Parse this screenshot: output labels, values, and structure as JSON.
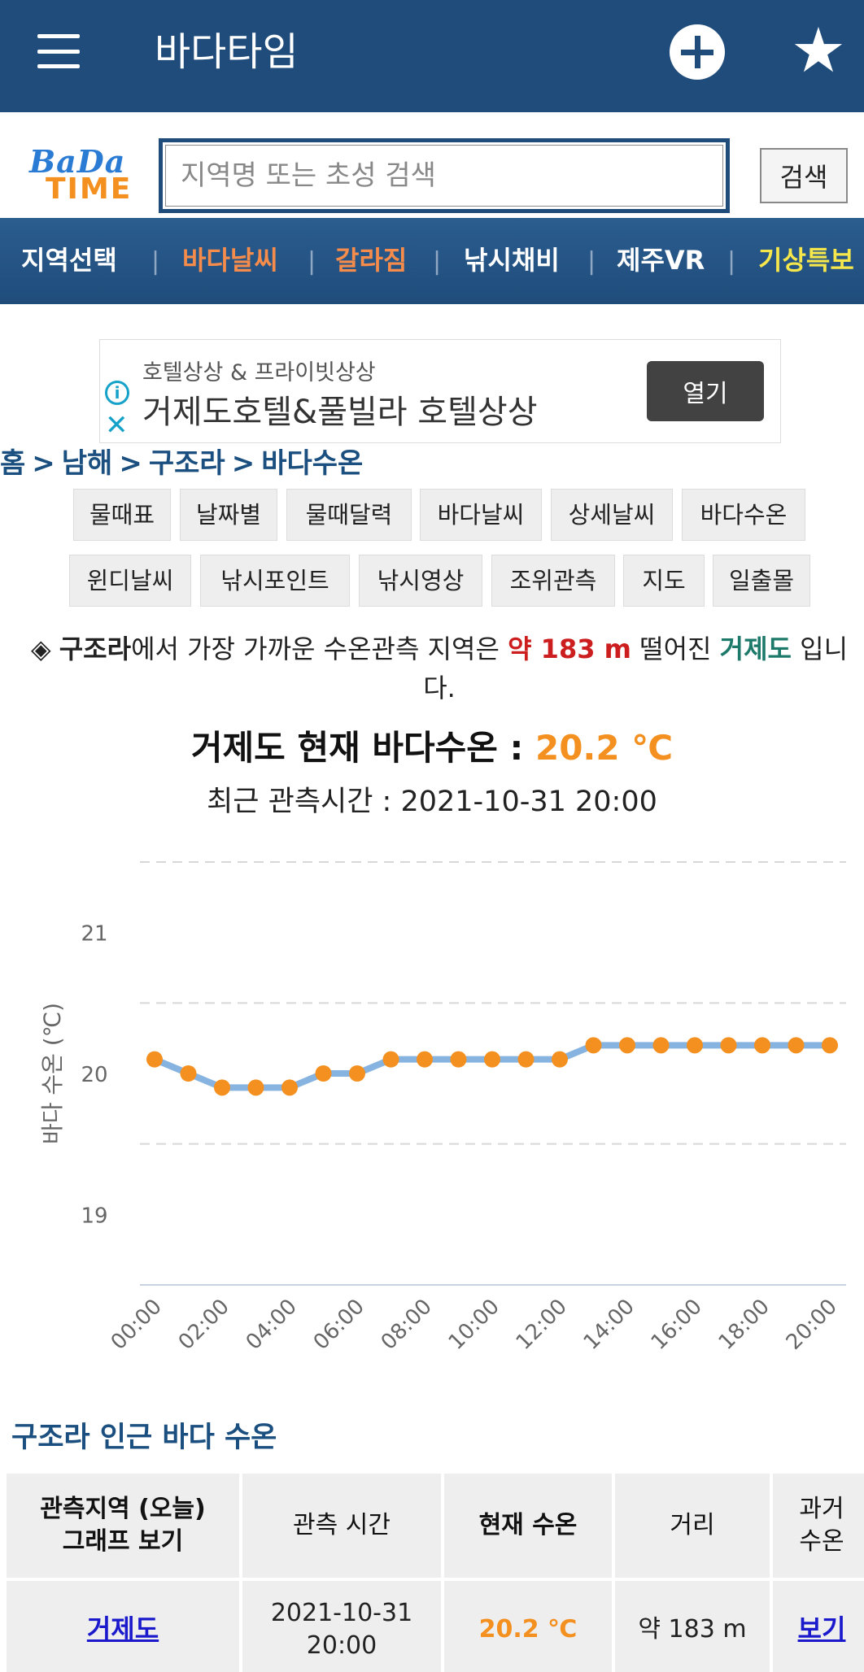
{
  "app": {
    "title": "바다타임"
  },
  "search": {
    "logo_line1": "BaDa",
    "logo_line2": "TIME",
    "placeholder": "지역명 또는 초성 검색",
    "button": "검색"
  },
  "nav": {
    "items": [
      {
        "label": "지역선택",
        "color": "#ffffff"
      },
      {
        "label": "바다날씨",
        "color": "#f58c4b"
      },
      {
        "label": "갈라짐",
        "color": "#f58c4b"
      },
      {
        "label": "낚시채비",
        "color": "#ffffff"
      },
      {
        "label": "제주VR",
        "color": "#ffffff"
      },
      {
        "label": "기상특보",
        "color": "#f5e64b"
      }
    ]
  },
  "ad": {
    "small": "호텔상상 & 프라이빗상상",
    "main": "거제도호텔&풀빌라 호텔상상",
    "button": "열기"
  },
  "breadcrumb": [
    "홈",
    "남해",
    "구조라",
    "바다수온"
  ],
  "tabs_row1": [
    "물때표",
    "날짜별",
    "물때달력",
    "바다날씨",
    "상세날씨",
    "바다수온"
  ],
  "tabs_row2": [
    "윈디날씨",
    "낚시포인트",
    "낚시영상",
    "조위관측",
    "지도",
    "일출몰"
  ],
  "info": {
    "bullet": "◈",
    "place": "구조라",
    "text1": "에서 가장 가까운 수온관측 지역은",
    "distance": "약 183 m",
    "text2": "떨어진",
    "station": "거제도",
    "text3": "입니다."
  },
  "current": {
    "title": "거제도 현재 바다수온 :",
    "temp": "20.2 ℃",
    "time_label": "최근 관측시간 : 2021-10-31 20:00"
  },
  "chart_data": {
    "type": "line",
    "ylabel": "바다 수온 (℃)",
    "ylim": [
      18.5,
      21.5
    ],
    "yticks": [
      19,
      20,
      21
    ],
    "grid": true,
    "line_color": "#86b3e0",
    "marker_color": "#f39020",
    "x_tick_labels": [
      "00:00",
      "02:00",
      "04:00",
      "06:00",
      "08:00",
      "10:00",
      "12:00",
      "14:00",
      "16:00",
      "18:00",
      "20:00"
    ],
    "x": [
      "00:00",
      "01:00",
      "02:00",
      "03:00",
      "04:00",
      "05:00",
      "06:00",
      "07:00",
      "08:00",
      "09:00",
      "10:00",
      "11:00",
      "12:00",
      "13:00",
      "14:00",
      "15:00",
      "16:00",
      "17:00",
      "18:00",
      "19:00",
      "20:00"
    ],
    "values": [
      20.1,
      20.0,
      19.9,
      19.9,
      19.9,
      20.0,
      20.0,
      20.1,
      20.1,
      20.1,
      20.1,
      20.1,
      20.1,
      20.2,
      20.2,
      20.2,
      20.2,
      20.2,
      20.2,
      20.2,
      20.2
    ]
  },
  "nearby": {
    "title": "구조라 인근 바다 수온",
    "headers": {
      "station_l1": "관측지역 (오늘)",
      "station_l2": "그래프 보기",
      "time": "관측 시간",
      "temp": "현재 수온",
      "distance": "거리",
      "past_l1": "과거",
      "past_l2": "수온"
    },
    "rows": [
      {
        "station": "거제도",
        "date": "2021-10-31",
        "time": "20:00",
        "temp": "20.2 ℃",
        "distance": "약 183 m",
        "past": "보기"
      }
    ]
  }
}
